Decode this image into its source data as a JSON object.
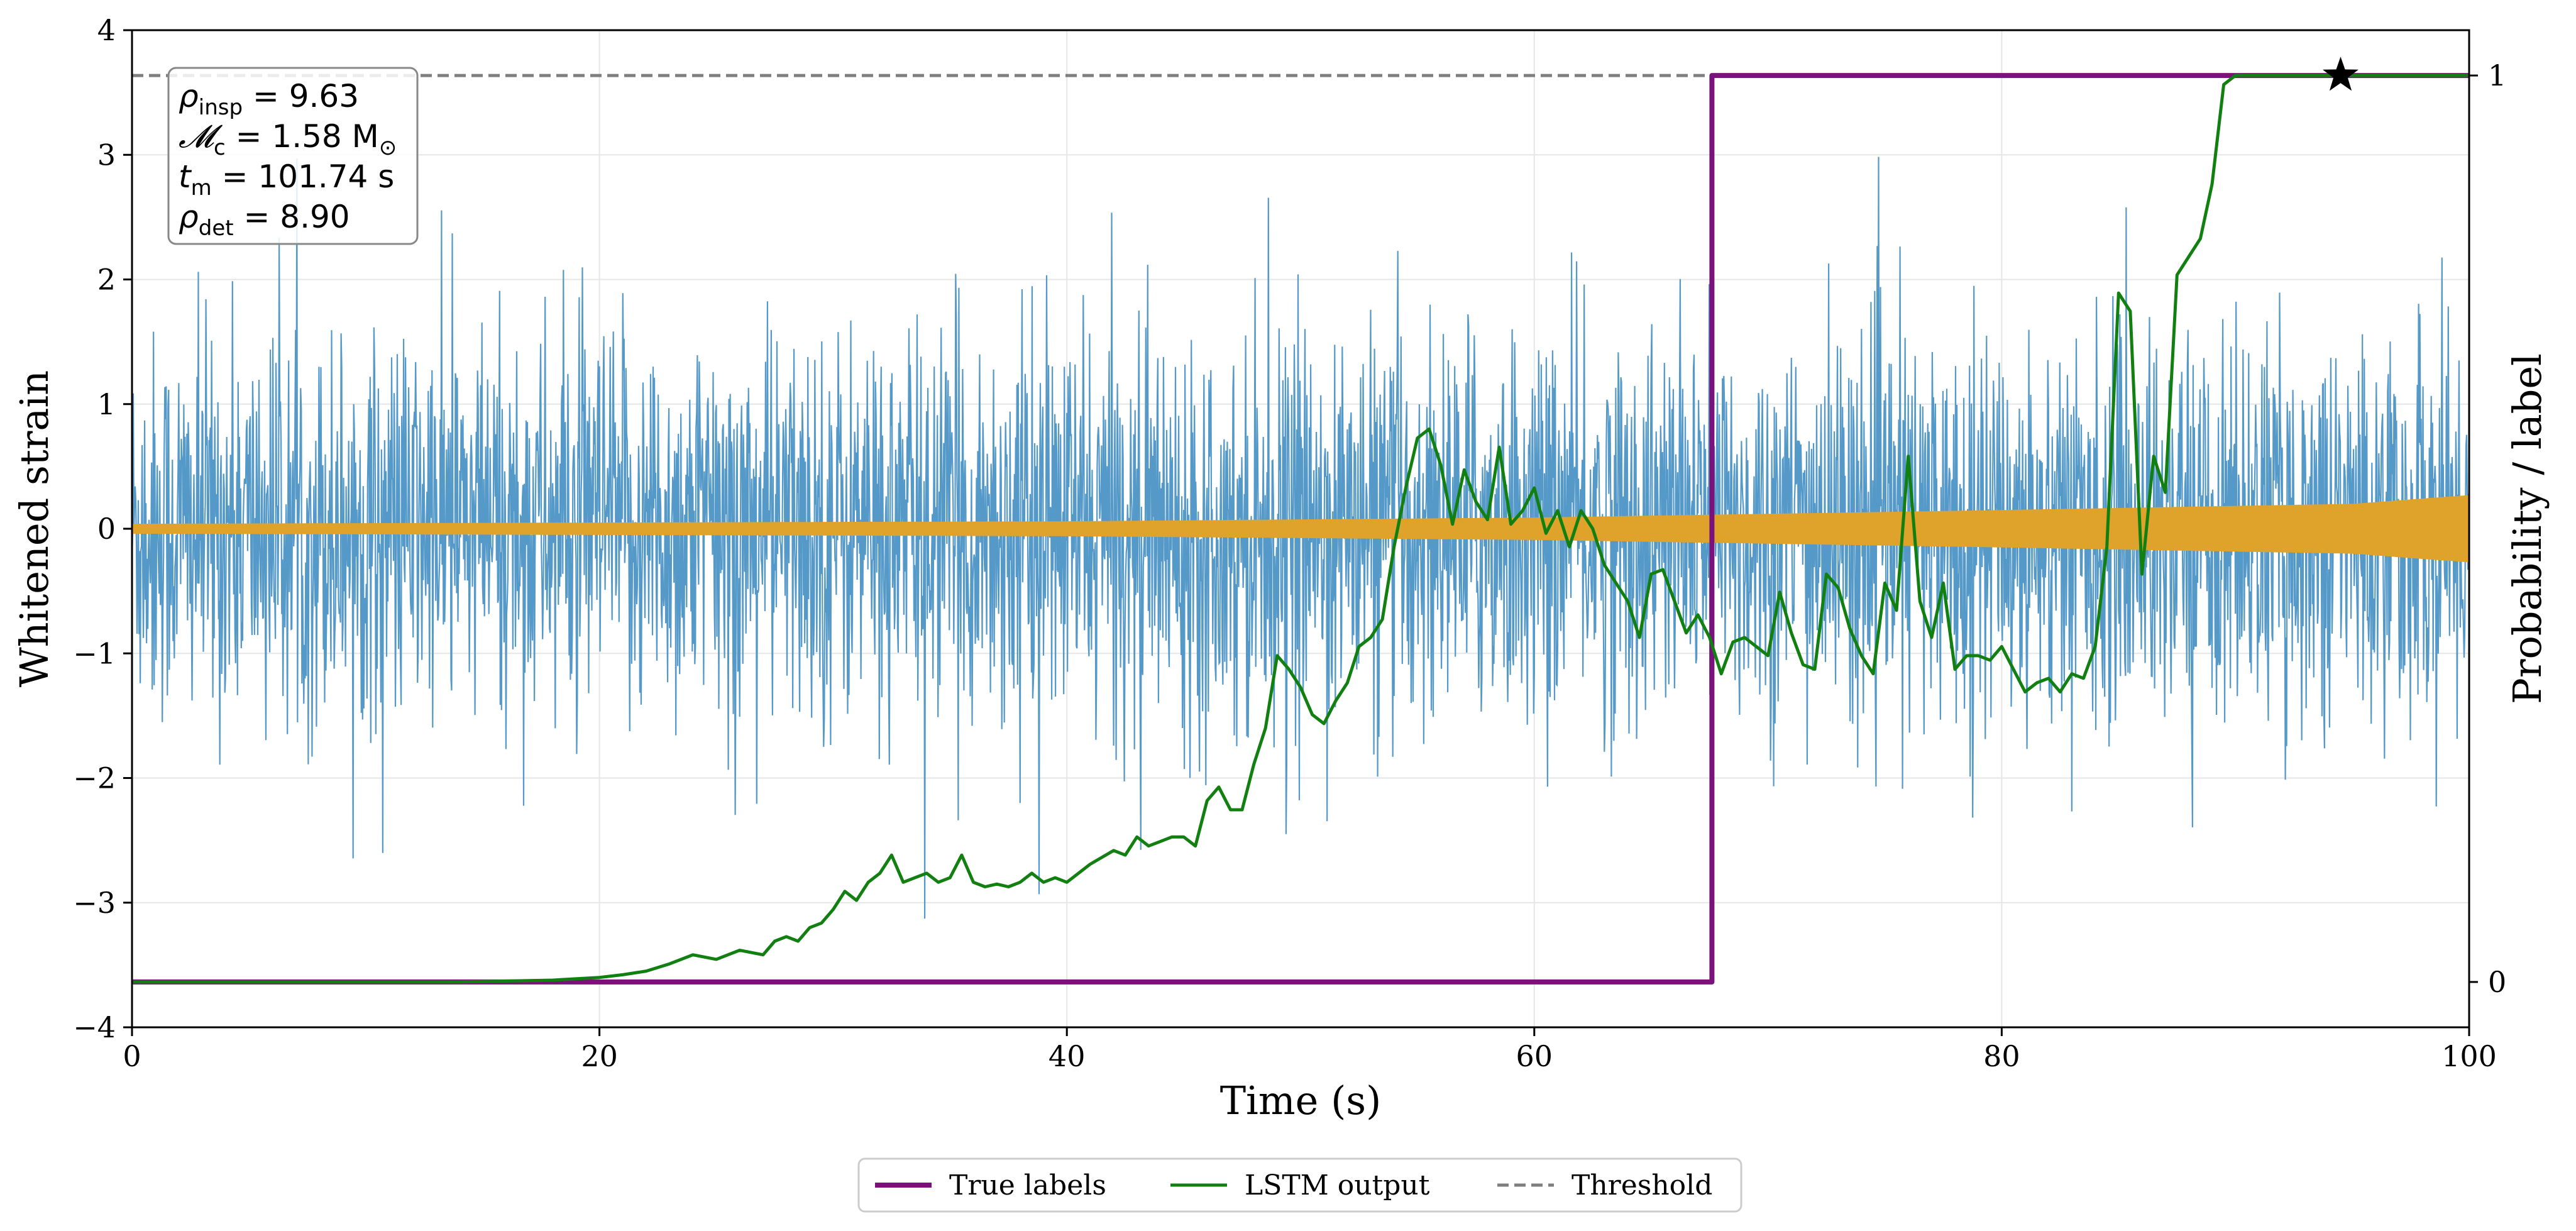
{
  "chart_data": {
    "type": "line",
    "x_range": [
      0,
      100
    ],
    "xlabel": "Time (s)",
    "ylabel_left": "Whitened strain",
    "ylabel_right": "Probability / label",
    "ylim_left": [
      -4,
      4
    ],
    "ylim_right": [
      -0.05,
      1.05
    ],
    "x_ticks": [
      0,
      20,
      40,
      60,
      80,
      100
    ],
    "x_tick_labels": [
      "0",
      "20",
      "40",
      "60",
      "80",
      "100"
    ],
    "y_left_ticks": [
      4,
      3,
      2,
      1,
      0,
      -1,
      -2,
      -3,
      -4
    ],
    "y_left_tick_labels": [
      "4",
      "3",
      "2",
      "1",
      "0",
      "−1",
      "−2",
      "−3",
      "−4"
    ],
    "y_right_ticks": [
      1,
      0
    ],
    "y_right_tick_labels": [
      "1",
      "0"
    ],
    "grid": true,
    "legend_position": "bottom-center",
    "colors": {
      "strain": "#5599c8",
      "signal": "#dfa22b",
      "true_labels": "#7b127b",
      "lstm": "#118011",
      "threshold": "#7f7f7f"
    },
    "annotation": {
      "position": "top-left",
      "lines": [
        {
          "symbol": "ρ",
          "sub": "insp",
          "rest": " = 9.63"
        },
        {
          "symbol": "𝓜",
          "sub": "c",
          "rest": " = 1.58 M",
          "suffix_sub": "⊙"
        },
        {
          "symbol": "t",
          "sub": "m",
          "rest": " = 101.74 s"
        },
        {
          "symbol": "ρ",
          "sub": "det",
          "rest": " = 8.90"
        }
      ]
    },
    "series": [
      {
        "name": "True labels",
        "axis": "right",
        "points": [
          [
            0,
            0
          ],
          [
            67.6,
            0
          ],
          [
            67.6,
            1
          ],
          [
            100,
            1
          ]
        ]
      },
      {
        "name": "LSTM output",
        "axis": "right",
        "points": [
          [
            0,
            0
          ],
          [
            5,
            0
          ],
          [
            10,
            0
          ],
          [
            14,
            0.0
          ],
          [
            18,
            0.002
          ],
          [
            20,
            0.005
          ],
          [
            21,
            0.008
          ],
          [
            22,
            0.012
          ],
          [
            23,
            0.02
          ],
          [
            24,
            0.03
          ],
          [
            25,
            0.025
          ],
          [
            26,
            0.035
          ],
          [
            27,
            0.03
          ],
          [
            27.5,
            0.045
          ],
          [
            28,
            0.05
          ],
          [
            28.5,
            0.045
          ],
          [
            29,
            0.06
          ],
          [
            29.5,
            0.065
          ],
          [
            30,
            0.08
          ],
          [
            30.5,
            0.1
          ],
          [
            31,
            0.09
          ],
          [
            31.5,
            0.11
          ],
          [
            32,
            0.12
          ],
          [
            32.5,
            0.14
          ],
          [
            33,
            0.11
          ],
          [
            33.5,
            0.115
          ],
          [
            34,
            0.12
          ],
          [
            34.5,
            0.11
          ],
          [
            35,
            0.115
          ],
          [
            35.5,
            0.14
          ],
          [
            36,
            0.11
          ],
          [
            36.5,
            0.105
          ],
          [
            37,
            0.108
          ],
          [
            37.5,
            0.105
          ],
          [
            38,
            0.11
          ],
          [
            38.5,
            0.12
          ],
          [
            39,
            0.11
          ],
          [
            39.5,
            0.115
          ],
          [
            40,
            0.11
          ],
          [
            40.5,
            0.12
          ],
          [
            41,
            0.13
          ],
          [
            42,
            0.145
          ],
          [
            42.5,
            0.14
          ],
          [
            43,
            0.16
          ],
          [
            43.5,
            0.15
          ],
          [
            44,
            0.155
          ],
          [
            44.5,
            0.16
          ],
          [
            45,
            0.16
          ],
          [
            45.5,
            0.15
          ],
          [
            46,
            0.2
          ],
          [
            46.5,
            0.215
          ],
          [
            47,
            0.19
          ],
          [
            47.5,
            0.19
          ],
          [
            48,
            0.24
          ],
          [
            48.5,
            0.28
          ],
          [
            49,
            0.36
          ],
          [
            49.5,
            0.345
          ],
          [
            50,
            0.325
          ],
          [
            50.5,
            0.295
          ],
          [
            51,
            0.285
          ],
          [
            51.5,
            0.31
          ],
          [
            52,
            0.33
          ],
          [
            52.5,
            0.37
          ],
          [
            53,
            0.38
          ],
          [
            53.5,
            0.4
          ],
          [
            54,
            0.48
          ],
          [
            54.5,
            0.545
          ],
          [
            55,
            0.6
          ],
          [
            55.5,
            0.61
          ],
          [
            56,
            0.57
          ],
          [
            56.5,
            0.505
          ],
          [
            57,
            0.565
          ],
          [
            57.5,
            0.53
          ],
          [
            58,
            0.51
          ],
          [
            58.5,
            0.59
          ],
          [
            59,
            0.505
          ],
          [
            59.5,
            0.52
          ],
          [
            60,
            0.545
          ],
          [
            60.5,
            0.495
          ],
          [
            61,
            0.52
          ],
          [
            61.5,
            0.48
          ],
          [
            62,
            0.52
          ],
          [
            62.5,
            0.5
          ],
          [
            63,
            0.46
          ],
          [
            64,
            0.42
          ],
          [
            64.5,
            0.38
          ],
          [
            65,
            0.45
          ],
          [
            65.5,
            0.455
          ],
          [
            66,
            0.42
          ],
          [
            66.5,
            0.385
          ],
          [
            67,
            0.405
          ],
          [
            67.5,
            0.38
          ],
          [
            68,
            0.34
          ],
          [
            68.5,
            0.375
          ],
          [
            69,
            0.38
          ],
          [
            69.5,
            0.37
          ],
          [
            70,
            0.36
          ],
          [
            70.5,
            0.43
          ],
          [
            71,
            0.385
          ],
          [
            71.5,
            0.35
          ],
          [
            72,
            0.345
          ],
          [
            72.5,
            0.45
          ],
          [
            73,
            0.435
          ],
          [
            73.5,
            0.39
          ],
          [
            74,
            0.36
          ],
          [
            74.5,
            0.34
          ],
          [
            75,
            0.44
          ],
          [
            75.5,
            0.41
          ],
          [
            76,
            0.58
          ],
          [
            76.5,
            0.42
          ],
          [
            77,
            0.38
          ],
          [
            77.5,
            0.44
          ],
          [
            78,
            0.345
          ],
          [
            78.5,
            0.36
          ],
          [
            79,
            0.36
          ],
          [
            79.5,
            0.355
          ],
          [
            80,
            0.37
          ],
          [
            80.5,
            0.345
          ],
          [
            81,
            0.32
          ],
          [
            81.5,
            0.33
          ],
          [
            82,
            0.335
          ],
          [
            82.5,
            0.32
          ],
          [
            83,
            0.34
          ],
          [
            83.5,
            0.335
          ],
          [
            84,
            0.37
          ],
          [
            84.5,
            0.48
          ],
          [
            85,
            0.76
          ],
          [
            85.5,
            0.74
          ],
          [
            86,
            0.45
          ],
          [
            86.5,
            0.58
          ],
          [
            87,
            0.54
          ],
          [
            87.5,
            0.78
          ],
          [
            88,
            0.8
          ],
          [
            88.5,
            0.82
          ],
          [
            89,
            0.88
          ],
          [
            89.5,
            0.99
          ],
          [
            90,
            1.0
          ],
          [
            92,
            1.0
          ],
          [
            95,
            1.0
          ],
          [
            100,
            1.0
          ]
        ]
      },
      {
        "name": "Threshold",
        "axis": "right",
        "style": "dashed",
        "points": [
          [
            0,
            1
          ],
          [
            100,
            1
          ]
        ]
      }
    ],
    "detection_marker": {
      "x": 94.5,
      "y": 1,
      "axis": "right",
      "symbol": "star"
    },
    "whitened_strain": {
      "axis": "left",
      "typical_range": [
        -1.5,
        1.5
      ],
      "extreme_range": [
        -4,
        3.8
      ]
    },
    "injected_signal": {
      "axis": "left",
      "amplitude_envelope": [
        [
          0,
          0.04
        ],
        [
          20,
          0.05
        ],
        [
          40,
          0.06
        ],
        [
          60,
          0.09
        ],
        [
          80,
          0.15
        ],
        [
          95,
          0.2
        ],
        [
          100,
          0.27
        ]
      ]
    }
  }
}
